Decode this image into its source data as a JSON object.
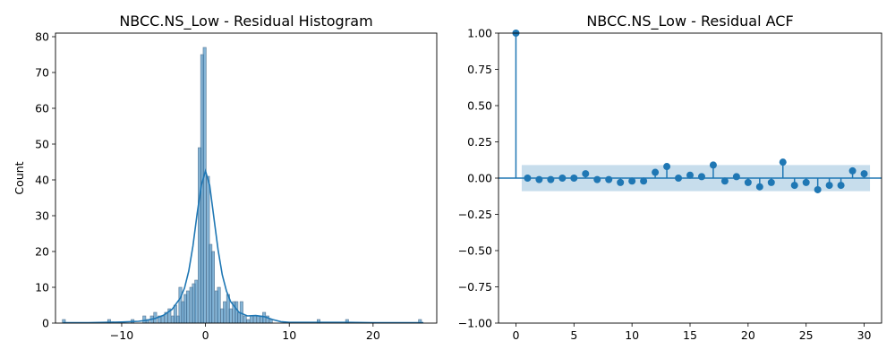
{
  "chart_data": [
    {
      "type": "histogram",
      "title": "NBCC.NS_Low - Residual Histogram",
      "xlabel": "",
      "ylabel": "Count",
      "xlim": [
        -17.9,
        27.6
      ],
      "ylim": [
        0,
        81
      ],
      "xticks": [
        -10,
        0,
        10,
        20
      ],
      "xtick_labels": [
        "−10",
        "0",
        "10",
        "20"
      ],
      "yticks": [
        0,
        10,
        20,
        30,
        40,
        50,
        60,
        70,
        80
      ],
      "ytick_labels": [
        "0",
        "10",
        "20",
        "30",
        "40",
        "50",
        "60",
        "70",
        "80"
      ],
      "bar_color": "#1f77b4",
      "bins": [
        {
          "x": -16.9,
          "count": 1
        },
        {
          "x": -11.5,
          "count": 1
        },
        {
          "x": -8.7,
          "count": 1
        },
        {
          "x": -7.3,
          "count": 2
        },
        {
          "x": -6.9,
          "count": 1
        },
        {
          "x": -6.4,
          "count": 2
        },
        {
          "x": -6.0,
          "count": 3
        },
        {
          "x": -5.5,
          "count": 2
        },
        {
          "x": -5.1,
          "count": 2
        },
        {
          "x": -4.7,
          "count": 3
        },
        {
          "x": -4.3,
          "count": 4
        },
        {
          "x": -3.9,
          "count": 2
        },
        {
          "x": -3.6,
          "count": 5
        },
        {
          "x": -3.3,
          "count": 2
        },
        {
          "x": -3.0,
          "count": 10
        },
        {
          "x": -2.7,
          "count": 6
        },
        {
          "x": -2.4,
          "count": 8
        },
        {
          "x": -2.1,
          "count": 9
        },
        {
          "x": -1.7,
          "count": 10
        },
        {
          "x": -1.4,
          "count": 11
        },
        {
          "x": -1.1,
          "count": 12
        },
        {
          "x": -0.7,
          "count": 49
        },
        {
          "x": -0.4,
          "count": 75
        },
        {
          "x": -0.1,
          "count": 77
        },
        {
          "x": 0.3,
          "count": 41
        },
        {
          "x": 0.6,
          "count": 22
        },
        {
          "x": 0.9,
          "count": 20
        },
        {
          "x": 1.3,
          "count": 9
        },
        {
          "x": 1.6,
          "count": 10
        },
        {
          "x": 2.0,
          "count": 4
        },
        {
          "x": 2.3,
          "count": 6
        },
        {
          "x": 2.7,
          "count": 8
        },
        {
          "x": 3.0,
          "count": 4
        },
        {
          "x": 3.4,
          "count": 6
        },
        {
          "x": 3.7,
          "count": 6
        },
        {
          "x": 4.0,
          "count": 3
        },
        {
          "x": 4.3,
          "count": 6
        },
        {
          "x": 4.7,
          "count": 2
        },
        {
          "x": 5.1,
          "count": 1
        },
        {
          "x": 5.5,
          "count": 2
        },
        {
          "x": 5.9,
          "count": 2
        },
        {
          "x": 6.3,
          "count": 2
        },
        {
          "x": 6.7,
          "count": 2
        },
        {
          "x": 7.0,
          "count": 3
        },
        {
          "x": 7.4,
          "count": 2
        },
        {
          "x": 7.8,
          "count": 1
        },
        {
          "x": 13.5,
          "count": 1
        },
        {
          "x": 16.9,
          "count": 1
        },
        {
          "x": 25.6,
          "count": 1
        }
      ],
      "kde": {
        "x": [
          -17,
          -14,
          -12,
          -10,
          -8,
          -7,
          -6,
          -5,
          -4,
          -3,
          -2.5,
          -2,
          -1.5,
          -1,
          -0.5,
          0,
          0.5,
          1,
          1.5,
          2,
          2.5,
          3,
          4,
          5,
          6,
          7,
          8,
          9,
          10,
          12,
          14,
          17,
          20,
          24,
          26
        ],
        "y": [
          0.1,
          0.1,
          0.2,
          0.3,
          0.5,
          0.8,
          1.3,
          2.2,
          3.8,
          7.0,
          9.8,
          14.5,
          21.5,
          30.5,
          38.5,
          42.5,
          38.5,
          29.5,
          20.5,
          13.5,
          9.0,
          6.0,
          3.0,
          2.0,
          2.1,
          1.8,
          1.0,
          0.4,
          0.2,
          0.2,
          0.2,
          0.2,
          0.1,
          0.1,
          0.1
        ]
      }
    },
    {
      "type": "stem",
      "title": "NBCC.NS_Low - Residual ACF",
      "xlabel": "",
      "ylabel": "",
      "xlim": [
        -1.5,
        31.5
      ],
      "ylim": [
        -1.0,
        1.0
      ],
      "xticks": [
        0,
        5,
        10,
        15,
        20,
        25,
        30
      ],
      "xtick_labels": [
        "0",
        "5",
        "10",
        "15",
        "20",
        "25",
        "30"
      ],
      "yticks": [
        -1.0,
        -0.75,
        -0.5,
        -0.25,
        0.0,
        0.25,
        0.5,
        0.75,
        1.0
      ],
      "ytick_labels": [
        "−1.00",
        "−0.75",
        "−0.50",
        "−0.25",
        "0.00",
        "0.25",
        "0.50",
        "0.75",
        "1.00"
      ],
      "marker_color": "#1f77b4",
      "lags": [
        0,
        1,
        2,
        3,
        4,
        5,
        6,
        7,
        8,
        9,
        10,
        11,
        12,
        13,
        14,
        15,
        16,
        17,
        18,
        19,
        20,
        21,
        22,
        23,
        24,
        25,
        26,
        27,
        28,
        29,
        30
      ],
      "acf": [
        1.0,
        0.0,
        -0.01,
        -0.01,
        0.0,
        0.0,
        0.03,
        -0.01,
        -0.01,
        -0.03,
        -0.02,
        -0.02,
        0.04,
        0.08,
        0.0,
        0.02,
        0.01,
        0.09,
        -0.02,
        0.01,
        -0.03,
        -0.06,
        -0.03,
        0.11,
        -0.05,
        -0.03,
        -0.08,
        -0.05,
        -0.05,
        0.05,
        0.03
      ],
      "confidence_band": {
        "x_range": [
          0.5,
          30.5
        ],
        "upper": 0.09,
        "lower": -0.09
      }
    }
  ]
}
